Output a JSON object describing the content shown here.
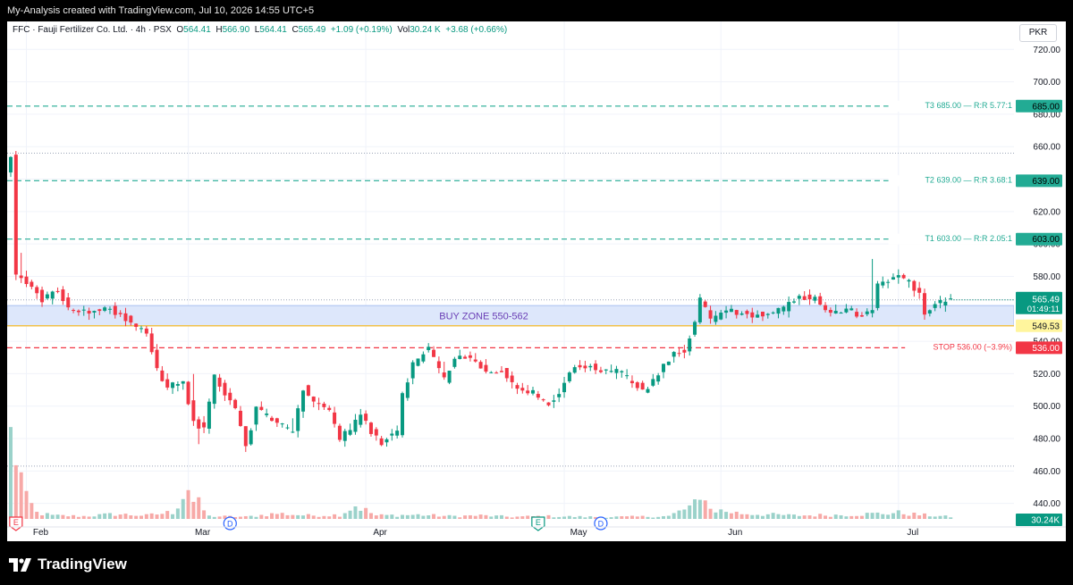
{
  "header": {
    "caption": "My-Analysis created with TradingView.com, Jul 10, 2026 14:55 UTC+5"
  },
  "legend": {
    "symbol": "FFC · Fauji Fertilizer Co. Ltd. · 4h · PSX",
    "o_label": "O",
    "o": "564.41",
    "h_label": "H",
    "h": "566.90",
    "l_label": "L",
    "l": "564.41",
    "c_label": "C",
    "c": "565.49",
    "change": "+1.09 (+0.19%)",
    "vol_label": "Vol",
    "vol": "30.24 K",
    "vol_change": "+3.68 (+0.66%)"
  },
  "currency": "PKR",
  "footer": {
    "brand": "TradingView"
  },
  "colors": {
    "up": "#089981",
    "down": "#f23645",
    "vol_up": "#9bd2ca",
    "vol_down": "#f7a9a7",
    "target": "#22ab94",
    "stop": "#f23645",
    "zone_fill": "#dde7fb",
    "zone_line": "#f0c24b",
    "zone_text": "#6a3fb5"
  },
  "chart_data": {
    "type": "candlestick",
    "symbol": "FFC",
    "timeframe": "4h",
    "y_axis": {
      "ticks": [
        720,
        700,
        680,
        660,
        640,
        620,
        600,
        580,
        560,
        540,
        520,
        500,
        480,
        460,
        440
      ],
      "tick_labels": [
        "720.00",
        "700.00",
        "680.00",
        "660.00",
        "640.00",
        "620.00",
        "600.00",
        "580.00",
        "560.00",
        "540.00",
        "520.00",
        "500.00",
        "480.00",
        "460.00",
        "440.00"
      ],
      "range": [
        431,
        724
      ]
    },
    "x_axis": {
      "labels": [
        {
          "label": "Feb",
          "index": 3
        },
        {
          "label": "Mar",
          "index": 34
        },
        {
          "label": "Apr",
          "index": 68
        },
        {
          "label": "May",
          "index": 106
        },
        {
          "label": "Jun",
          "index": 136
        },
        {
          "label": "Jul",
          "index": 170
        }
      ],
      "bars": 181
    },
    "levels": [
      {
        "name": "T3",
        "price": 685.0,
        "label": "T3 685.00 — R:R 5.77:1",
        "tag": "685.00",
        "style": "target"
      },
      {
        "name": "T2",
        "price": 639.0,
        "label": "T2 639.00 — R:R 3.68:1",
        "tag": "639.00",
        "style": "target"
      },
      {
        "name": "T1",
        "price": 603.0,
        "label": "T1 603.00 — R:R 2.05:1",
        "tag": "603.00",
        "style": "target"
      },
      {
        "name": "STOP",
        "price": 536.0,
        "label": "STOP 536.00 (−3.9%)",
        "tag": "536.00",
        "style": "stop"
      }
    ],
    "dotted_levels": [
      656,
      565.5,
      463
    ],
    "buy_zone": {
      "low": 549.53,
      "high": 562,
      "label": "BUY ZONE 550-562",
      "tag": "549.53"
    },
    "last_price": {
      "value": "565.49",
      "countdown": "01:49:11",
      "price": 565.49
    },
    "volume_tag": "30.24K",
    "events": [
      {
        "type": "earnings",
        "label": "E",
        "index": 1
      },
      {
        "type": "dividend",
        "label": "D",
        "index": 42
      },
      {
        "type": "earnings",
        "label": "E",
        "index": 101
      },
      {
        "type": "dividend",
        "label": "D",
        "index": 113
      }
    ],
    "price_path": [
      [
        0,
        645
      ],
      [
        1,
        655
      ],
      [
        2,
        580
      ],
      [
        3,
        578
      ],
      [
        5,
        575
      ],
      [
        7,
        566
      ],
      [
        10,
        572
      ],
      [
        12,
        560
      ],
      [
        16,
        558
      ],
      [
        20,
        560
      ],
      [
        24,
        552
      ],
      [
        27,
        545
      ],
      [
        29,
        522
      ],
      [
        31,
        512
      ],
      [
        34,
        514
      ],
      [
        36,
        491
      ],
      [
        38,
        485
      ],
      [
        40,
        518
      ],
      [
        42,
        508
      ],
      [
        44,
        499
      ],
      [
        46,
        476
      ],
      [
        48,
        498
      ],
      [
        52,
        490
      ],
      [
        55,
        483
      ],
      [
        57,
        511
      ],
      [
        59,
        503
      ],
      [
        62,
        496
      ],
      [
        64,
        480
      ],
      [
        66,
        486
      ],
      [
        68,
        494
      ],
      [
        70,
        484
      ],
      [
        72,
        478
      ],
      [
        75,
        484
      ],
      [
        76,
        506
      ],
      [
        78,
        526
      ],
      [
        81,
        536
      ],
      [
        84,
        516
      ],
      [
        86,
        530
      ],
      [
        89,
        529
      ],
      [
        92,
        522
      ],
      [
        95,
        522
      ],
      [
        98,
        511
      ],
      [
        101,
        508
      ],
      [
        104,
        501
      ],
      [
        106,
        508
      ],
      [
        108,
        522
      ],
      [
        110,
        525
      ],
      [
        112,
        525
      ],
      [
        114,
        522
      ],
      [
        117,
        522
      ],
      [
        120,
        515
      ],
      [
        122,
        510
      ],
      [
        124,
        515
      ],
      [
        126,
        525
      ],
      [
        128,
        532
      ],
      [
        130,
        534
      ],
      [
        132,
        552
      ],
      [
        133,
        566
      ],
      [
        135,
        553
      ],
      [
        138,
        560
      ],
      [
        142,
        556
      ],
      [
        146,
        557
      ],
      [
        149,
        560
      ],
      [
        152,
        568
      ],
      [
        155,
        566
      ],
      [
        158,
        556
      ],
      [
        161,
        560
      ],
      [
        164,
        555
      ],
      [
        166,
        561
      ],
      [
        167,
        574
      ],
      [
        169,
        578
      ],
      [
        171,
        580
      ],
      [
        173,
        576
      ],
      [
        175,
        568
      ],
      [
        176,
        558
      ],
      [
        178,
        562
      ],
      [
        180,
        565.5
      ]
    ],
    "volume_path": [
      [
        0,
        118
      ],
      [
        1,
        97
      ],
      [
        2,
        61
      ],
      [
        3,
        28
      ],
      [
        4,
        20
      ],
      [
        5,
        9
      ],
      [
        8,
        5
      ],
      [
        14,
        4
      ],
      [
        20,
        7
      ],
      [
        26,
        5
      ],
      [
        31,
        10
      ],
      [
        34,
        48
      ],
      [
        35,
        25
      ],
      [
        36,
        22
      ],
      [
        38,
        4
      ],
      [
        45,
        3
      ],
      [
        51,
        8
      ],
      [
        57,
        5
      ],
      [
        63,
        6
      ],
      [
        66,
        20
      ],
      [
        70,
        5
      ],
      [
        78,
        6
      ],
      [
        84,
        4
      ],
      [
        90,
        5
      ],
      [
        96,
        3
      ],
      [
        102,
        4
      ],
      [
        110,
        3
      ],
      [
        118,
        3
      ],
      [
        126,
        4
      ],
      [
        132,
        24
      ],
      [
        133,
        42
      ],
      [
        134,
        14
      ],
      [
        140,
        8
      ],
      [
        150,
        5
      ],
      [
        160,
        6
      ],
      [
        170,
        9
      ],
      [
        174,
        6
      ],
      [
        180,
        3
      ]
    ],
    "spikes": [
      [
        2,
        12
      ],
      [
        35,
        14
      ],
      [
        36,
        -8
      ],
      [
        83,
        6
      ],
      [
        165,
        28
      ],
      [
        54,
        8
      ]
    ]
  }
}
